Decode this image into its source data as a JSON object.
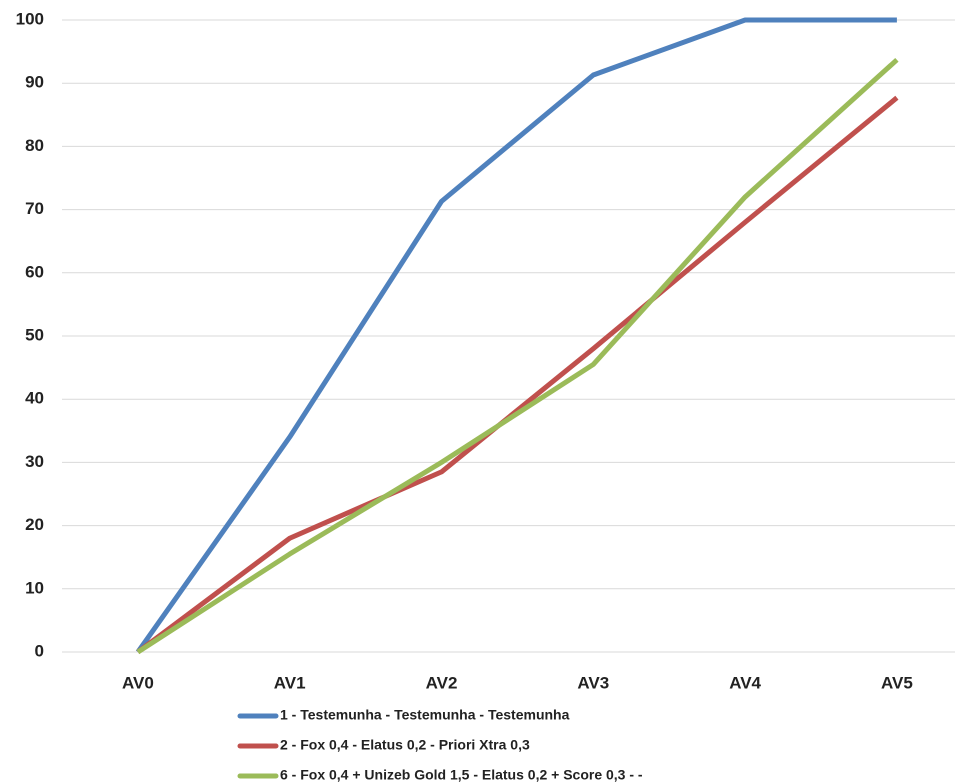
{
  "chart_data": {
    "type": "line",
    "categories": [
      "AV0",
      "AV1",
      "AV2",
      "AV3",
      "AV4",
      "AV5"
    ],
    "series": [
      {
        "name": "1 - Testemunha - Testemunha - Testemunha",
        "color": "#4f81bd",
        "values": [
          0,
          34,
          71.3,
          91.3,
          100,
          100
        ]
      },
      {
        "name": "2 - Fox 0,4 - Elatus 0,2 - Priori Xtra 0,3",
        "color": "#c0504d",
        "values": [
          0,
          18,
          28.5,
          48,
          68,
          87.7
        ]
      },
      {
        "name": "6 - Fox 0,4 + Unizeb Gold 1,5 - Elatus 0,2 + Score 0,3 - -",
        "color": "#9bbb59",
        "values": [
          0,
          15.5,
          30,
          45.5,
          72,
          93.7
        ]
      }
    ],
    "ylim": [
      0,
      100
    ],
    "yticks": [
      0,
      10,
      20,
      30,
      40,
      50,
      60,
      70,
      80,
      90,
      100
    ],
    "grid": true,
    "legend": "bottom"
  }
}
